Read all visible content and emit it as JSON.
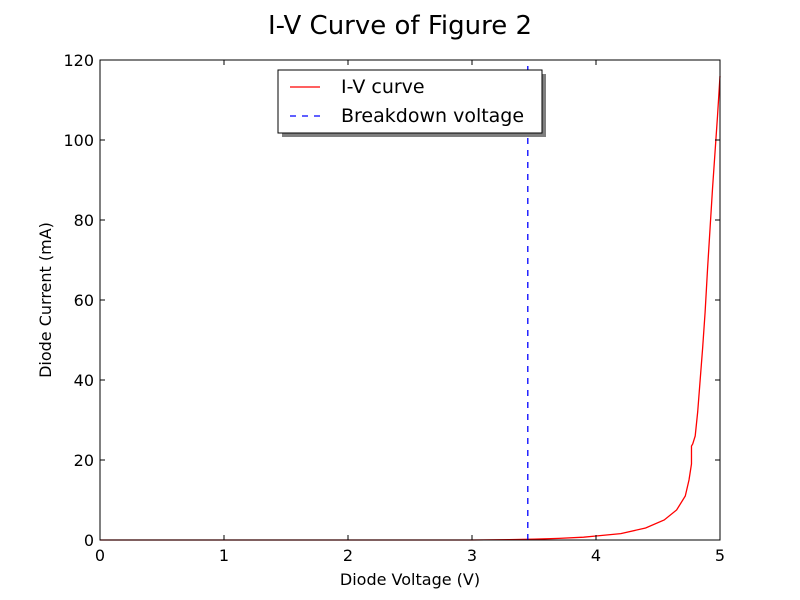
{
  "chart_data": {
    "type": "line",
    "title": "I-V Curve of Figure 2",
    "xlabel": "Diode Voltage (V)",
    "ylabel": "Diode Current (mA)",
    "xlim": [
      0,
      5
    ],
    "ylim": [
      0,
      120
    ],
    "xticks": [
      "0",
      "1",
      "2",
      "3",
      "4",
      "5"
    ],
    "yticks": [
      "0",
      "20",
      "40",
      "60",
      "80",
      "100",
      "120"
    ],
    "grid": false,
    "legend_position": "top-center",
    "series": [
      {
        "name": "I-V curve",
        "color": "#ff0000",
        "style": "solid",
        "x": [
          0,
          0.5,
          1.0,
          1.5,
          2.0,
          2.5,
          3.0,
          3.3,
          3.5,
          3.7,
          3.9,
          4.0,
          4.2,
          4.4,
          4.55,
          4.65,
          4.72,
          4.75,
          4.77,
          4.77,
          4.78,
          4.8,
          4.82,
          4.84,
          4.86,
          4.88,
          4.9,
          4.92,
          4.94,
          4.96,
          4.98,
          5.0
        ],
        "y": [
          0,
          0,
          0,
          0,
          0,
          0,
          0,
          0.1,
          0.2,
          0.4,
          0.7,
          1.0,
          1.6,
          3.0,
          5.0,
          7.5,
          11.0,
          15.0,
          19.0,
          23.5,
          24.0,
          26.0,
          32.0,
          40.0,
          48.0,
          57.0,
          68.0,
          78.0,
          88.0,
          97.0,
          106.0,
          116.0
        ]
      },
      {
        "name": "Breakdown voltage",
        "color": "#0000ff",
        "style": "dashed",
        "x": [
          3.45,
          3.45
        ],
        "y": [
          0,
          120
        ]
      }
    ]
  }
}
